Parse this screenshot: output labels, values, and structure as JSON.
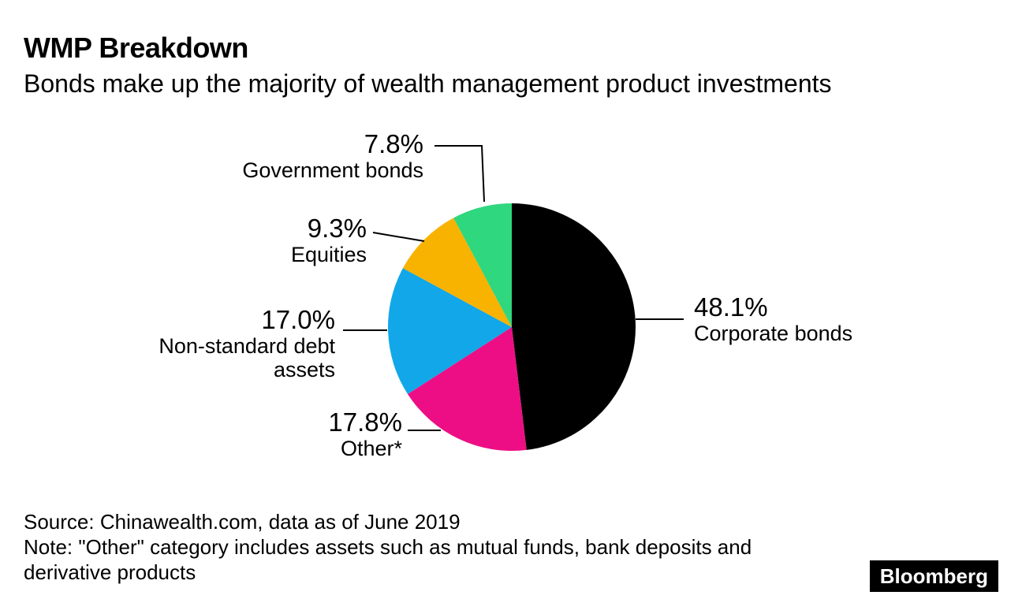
{
  "header": {
    "title": "WMP Breakdown",
    "subtitle": "Bonds make up the majority of wealth management product investments"
  },
  "chart_data": {
    "type": "pie",
    "title": "WMP Breakdown",
    "subtitle": "Bonds make up the majority of wealth management product investments",
    "start_angle_deg": 0,
    "direction": "clockwise",
    "slices": [
      {
        "label": "Corporate bonds",
        "value": 48.1,
        "pct": "48.1%",
        "color": "#000000"
      },
      {
        "label": "Other*",
        "value": 17.8,
        "pct": "17.8%",
        "color": "#ed0e85"
      },
      {
        "label": "Non-standard debt assets",
        "value": 17.0,
        "pct": "17.0%",
        "color": "#12a7e8"
      },
      {
        "label": "Equities",
        "value": 9.3,
        "pct": "9.3%",
        "color": "#f8b200"
      },
      {
        "label": "Government bonds",
        "value": 7.8,
        "pct": "7.8%",
        "color": "#2fd77e"
      }
    ]
  },
  "footer": {
    "source": "Source: Chinawealth.com, data as of June 2019",
    "note_line1": "Note: \"Other\" category includes assets such as mutual funds, bank deposits and",
    "note_line2": "derivative products",
    "logo": "Bloomberg"
  }
}
